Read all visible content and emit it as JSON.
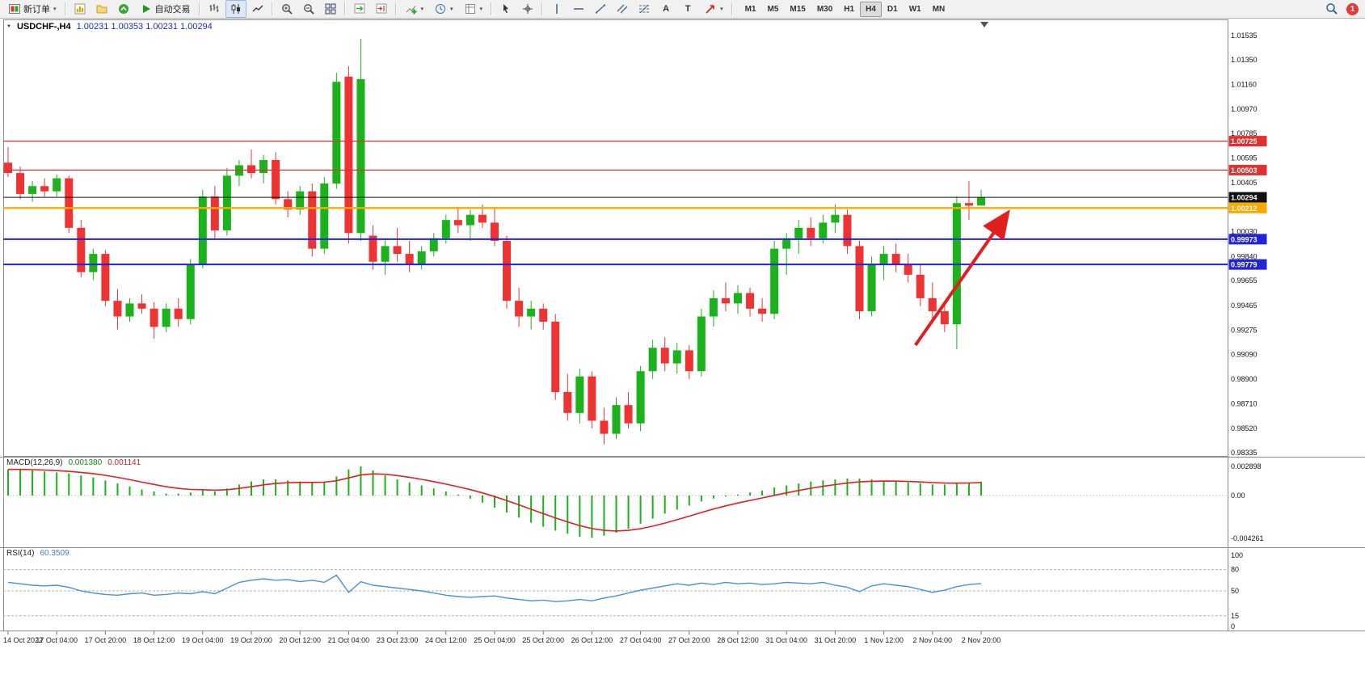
{
  "toolbar": {
    "new_order_label": "新订单",
    "auto_trading_label": "自动交易",
    "text_tool_label": "A",
    "text_label_tool_label": "T",
    "timeframes": [
      "M1",
      "M5",
      "M15",
      "M30",
      "H1",
      "H4",
      "D1",
      "W1",
      "MN"
    ],
    "active_timeframe": "H4",
    "notification_count": "1"
  },
  "chart": {
    "title_symbol": "USDCHF-,H4",
    "title_ohlc": "1.00231  1.00353  1.00231  1.00294"
  },
  "colors": {
    "bull": "#1cb21c",
    "bear": "#ee3333",
    "macd_hist": "#1cb21c",
    "macd_signal": "#e02020",
    "rsi_line": "#4a90d9",
    "arrow": "#e02020"
  },
  "chart_data": {
    "type": "candlestick",
    "symbol": "USDCHF",
    "period": "H4",
    "y_axis_ticks": [
      "1.01535",
      "1.01350",
      "1.01160",
      "1.00970",
      "1.00785",
      "1.00595",
      "1.00405",
      "1.00220",
      "1.00030",
      "0.99840",
      "0.99655",
      "0.99465",
      "0.99275",
      "0.99090",
      "0.98900",
      "0.98710",
      "0.98520",
      "0.98335"
    ],
    "price_lines": [
      {
        "price": 1.00725,
        "label": "1.00725",
        "color": "#e03030",
        "width": 1.2
      },
      {
        "price": 1.00503,
        "label": "1.00503",
        "color": "#e03030",
        "width": 1.2
      },
      {
        "price": 1.00294,
        "label": "1.00294",
        "color": "#111111",
        "width": 1
      },
      {
        "price": 1.00212,
        "label": "1.00212",
        "color": "#ffa800",
        "width": 2.4
      },
      {
        "price": 0.99973,
        "label": "0.99973",
        "color": "#2323d7",
        "width": 2
      },
      {
        "price": 0.99779,
        "label": "0.99779",
        "color": "#2323d7",
        "width": 2
      }
    ],
    "candles": [
      [
        1.0056,
        1.0068,
        1.0045,
        1.0048
      ],
      [
        1.0048,
        1.0053,
        1.0028,
        1.0032
      ],
      [
        1.0032,
        1.0042,
        1.0026,
        1.0038
      ],
      [
        1.0038,
        1.0044,
        1.003,
        1.0034
      ],
      [
        1.0034,
        1.0047,
        1.003,
        1.0044
      ],
      [
        1.0044,
        1.0046,
        1.0002,
        1.0006
      ],
      [
        1.0006,
        1.0012,
        0.9968,
        0.9972
      ],
      [
        0.9972,
        0.999,
        0.9966,
        0.9986
      ],
      [
        0.9986,
        0.9989,
        0.9946,
        0.995
      ],
      [
        0.995,
        0.9959,
        0.9928,
        0.9938
      ],
      [
        0.9938,
        0.9952,
        0.9934,
        0.9948
      ],
      [
        0.9948,
        0.9955,
        0.994,
        0.9944
      ],
      [
        0.9944,
        0.9949,
        0.9921,
        0.993
      ],
      [
        0.993,
        0.9948,
        0.9926,
        0.9944
      ],
      [
        0.9944,
        0.9952,
        0.993,
        0.9936
      ],
      [
        0.9936,
        0.9982,
        0.9932,
        0.9978
      ],
      [
        0.9978,
        1.0035,
        0.9975,
        1.003
      ],
      [
        1.003,
        1.0038,
        0.9998,
        1.0004
      ],
      [
        1.0004,
        1.0052,
        1.0,
        1.0046
      ],
      [
        1.0046,
        1.0058,
        1.0038,
        1.0054
      ],
      [
        1.0054,
        1.0066,
        1.0044,
        1.0048
      ],
      [
        1.0048,
        1.0062,
        1.004,
        1.0058
      ],
      [
        1.0058,
        1.0064,
        1.0024,
        1.0028
      ],
      [
        1.0028,
        1.0034,
        1.0014,
        1.002
      ],
      [
        1.002,
        1.0038,
        1.0016,
        1.0034
      ],
      [
        1.0034,
        1.004,
        0.9984,
        0.999
      ],
      [
        0.999,
        1.0045,
        0.9986,
        1.004
      ],
      [
        1.004,
        1.0125,
        1.0036,
        1.0118
      ],
      [
        1.0122,
        1.013,
        0.9994,
        1.0002
      ],
      [
        1.0002,
        1.0151,
        0.9996,
        1.012
      ],
      [
        1.0,
        1.0008,
        0.9974,
        0.998
      ],
      [
        0.998,
        0.9998,
        0.997,
        0.9992
      ],
      [
        0.9992,
        1.0006,
        0.998,
        0.9986
      ],
      [
        0.9986,
        0.9996,
        0.9972,
        0.9978
      ],
      [
        0.9978,
        0.9992,
        0.9974,
        0.9988
      ],
      [
        0.9988,
        1.0002,
        0.9984,
        0.9998
      ],
      [
        0.9998,
        1.0016,
        0.9994,
        1.0012
      ],
      [
        1.0012,
        1.0022,
        1.0002,
        1.0008
      ],
      [
        1.0008,
        1.002,
        0.9996,
        1.0016
      ],
      [
        1.0016,
        1.0024,
        1.0006,
        1.001
      ],
      [
        1.001,
        1.0022,
        0.9992,
        0.9996
      ],
      [
        0.9996,
        1.0,
        0.9944,
        0.995
      ],
      [
        0.995,
        0.996,
        0.993,
        0.9938
      ],
      [
        0.9938,
        0.995,
        0.9928,
        0.9944
      ],
      [
        0.9944,
        0.9948,
        0.9928,
        0.9934
      ],
      [
        0.9934,
        0.994,
        0.9874,
        0.988
      ],
      [
        0.988,
        0.9894,
        0.9858,
        0.9864
      ],
      [
        0.9864,
        0.9898,
        0.9856,
        0.9892
      ],
      [
        0.9892,
        0.9896,
        0.9852,
        0.9858
      ],
      [
        0.9858,
        0.9868,
        0.984,
        0.9848
      ],
      [
        0.9848,
        0.9876,
        0.9844,
        0.987
      ],
      [
        0.987,
        0.988,
        0.9852,
        0.9856
      ],
      [
        0.9856,
        0.99,
        0.985,
        0.9896
      ],
      [
        0.9896,
        0.992,
        0.989,
        0.9914
      ],
      [
        0.9914,
        0.9922,
        0.9896,
        0.9902
      ],
      [
        0.9902,
        0.9918,
        0.9894,
        0.9912
      ],
      [
        0.9912,
        0.9916,
        0.989,
        0.9896
      ],
      [
        0.9896,
        0.9944,
        0.9892,
        0.9938
      ],
      [
        0.9938,
        0.9958,
        0.993,
        0.9952
      ],
      [
        0.9952,
        0.9964,
        0.9942,
        0.9948
      ],
      [
        0.9948,
        0.9962,
        0.994,
        0.9956
      ],
      [
        0.9956,
        0.996,
        0.9938,
        0.9944
      ],
      [
        0.9944,
        0.9952,
        0.9934,
        0.994
      ],
      [
        0.994,
        0.9996,
        0.9936,
        0.999
      ],
      [
        0.999,
        1.0002,
        0.997,
        0.9998
      ],
      [
        0.9998,
        1.0012,
        0.9986,
        1.0006
      ],
      [
        1.0006,
        1.0014,
        0.9992,
        0.9998
      ],
      [
        0.9998,
        1.0016,
        0.9994,
        1.001
      ],
      [
        1.001,
        1.0024,
        1.0002,
        1.0016
      ],
      [
        1.0016,
        1.002,
        0.9986,
        0.9992
      ],
      [
        0.9992,
        0.9996,
        0.9936,
        0.9942
      ],
      [
        0.9942,
        0.9984,
        0.9938,
        0.9978
      ],
      [
        0.9978,
        0.9992,
        0.9966,
        0.9986
      ],
      [
        0.9986,
        0.9994,
        0.9972,
        0.9978
      ],
      [
        0.9978,
        0.9986,
        0.9964,
        0.997
      ],
      [
        0.997,
        0.9978,
        0.9946,
        0.9952
      ],
      [
        0.9952,
        0.9964,
        0.9936,
        0.9942
      ],
      [
        0.9942,
        0.995,
        0.9926,
        0.9932
      ],
      [
        0.9932,
        1.003,
        0.9913,
        1.0025
      ],
      [
        1.0025,
        1.0042,
        1.0012,
        1.0023
      ],
      [
        1.00231,
        1.00353,
        1.00231,
        1.00294
      ]
    ],
    "time_labels": [
      {
        "index": 0,
        "text": "14 Oct 2022"
      },
      {
        "index": 4,
        "text": "17 Oct 04:00"
      },
      {
        "index": 8,
        "text": "17 Oct 20:00"
      },
      {
        "index": 12,
        "text": "18 Oct 12:00"
      },
      {
        "index": 16,
        "text": "19 Oct 04:00"
      },
      {
        "index": 20,
        "text": "19 Oct 20:00"
      },
      {
        "index": 24,
        "text": "20 Oct 12:00"
      },
      {
        "index": 28,
        "text": "21 Oct 04:00"
      },
      {
        "index": 32,
        "text": "23 Oct 23:00"
      },
      {
        "index": 36,
        "text": "24 Oct 12:00"
      },
      {
        "index": 40,
        "text": "25 Oct 04:00"
      },
      {
        "index": 44,
        "text": "25 Oct 20:00"
      },
      {
        "index": 48,
        "text": "26 Oct 12:00"
      },
      {
        "index": 52,
        "text": "27 Oct 04:00"
      },
      {
        "index": 56,
        "text": "27 Oct 20:00"
      },
      {
        "index": 60,
        "text": "28 Oct 12:00"
      },
      {
        "index": 64,
        "text": "31 Oct 04:00"
      },
      {
        "index": 68,
        "text": "31 Oct 20:00"
      },
      {
        "index": 72,
        "text": "1 Nov 12:00"
      },
      {
        "index": 76,
        "text": "2 Nov 04:00"
      },
      {
        "index": 80,
        "text": "2 Nov 20:00"
      }
    ],
    "arrow": {
      "from_index": 74.6,
      "from_price": 0.9916,
      "to_index": 82,
      "to_price": 1.0015
    },
    "macd": {
      "name": "MACD(12,26,9)",
      "main_value": "0.001380",
      "signal_value": "0.001141",
      "axis": [
        "0.002898",
        "0.00",
        "-0.004261"
      ],
      "histogram": [
        0.0026,
        0.0026,
        0.0025,
        0.0024,
        0.0023,
        0.0022,
        0.002,
        0.0018,
        0.0015,
        0.0012,
        0.0009,
        0.0006,
        0.0004,
        0.0002,
        0.0002,
        0.0003,
        0.0005,
        0.0004,
        0.0007,
        0.0011,
        0.0014,
        0.0016,
        0.0016,
        0.0015,
        0.0014,
        0.0013,
        0.0014,
        0.0019,
        0.0026,
        0.0029,
        0.0025,
        0.002,
        0.0016,
        0.0013,
        0.001,
        0.0007,
        0.0004,
        0.0001,
        -0.0003,
        -0.0007,
        -0.0012,
        -0.0017,
        -0.0022,
        -0.0027,
        -0.0031,
        -0.0035,
        -0.0038,
        -0.0041,
        -0.0042,
        -0.004,
        -0.0037,
        -0.0033,
        -0.0028,
        -0.0023,
        -0.0018,
        -0.0014,
        -0.001,
        -0.0006,
        -0.0003,
        -0.0001,
        0.0001,
        0.0003,
        0.0005,
        0.0008,
        0.001,
        0.0012,
        0.0014,
        0.0015,
        0.0016,
        0.0017,
        0.0017,
        0.0016,
        0.0015,
        0.0014,
        0.0013,
        0.0012,
        0.0011,
        0.0011,
        0.0012,
        0.0013,
        0.00138
      ]
    },
    "rsi": {
      "name": "RSI(14)",
      "value": "60.3509",
      "levels": [
        80,
        50,
        15
      ],
      "axis": [
        "100",
        "80",
        "50",
        "15",
        "0"
      ],
      "values": [
        62,
        60,
        58,
        57,
        58,
        55,
        50,
        47,
        45,
        44,
        46,
        47,
        44,
        45,
        47,
        46,
        49,
        46,
        54,
        62,
        65,
        67,
        65,
        66,
        63,
        65,
        62,
        72,
        48,
        63,
        58,
        56,
        54,
        52,
        50,
        47,
        44,
        42,
        41,
        42,
        43,
        40,
        38,
        36,
        37,
        35,
        36,
        38,
        36,
        40,
        43,
        47,
        51,
        54,
        57,
        60,
        58,
        61,
        59,
        62,
        60,
        61,
        59,
        60,
        62,
        61,
        60,
        62,
        58,
        55,
        49,
        57,
        60,
        58,
        56,
        52,
        48,
        51,
        56,
        59,
        60.35
      ]
    }
  }
}
